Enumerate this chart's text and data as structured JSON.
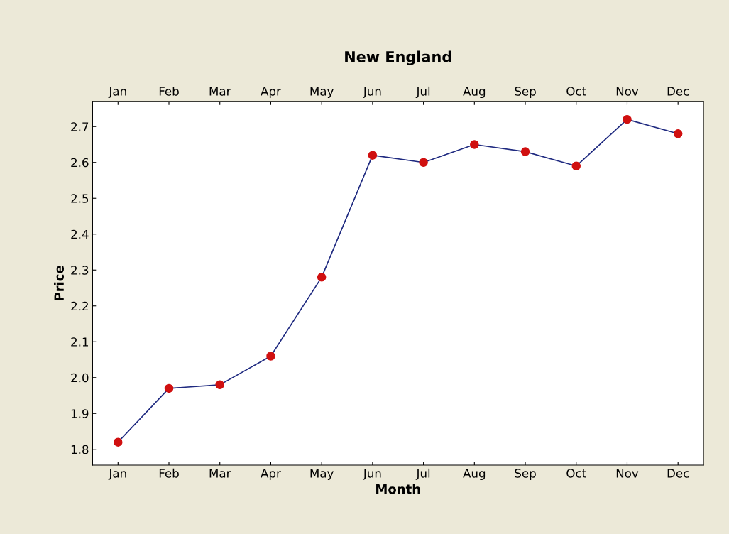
{
  "chart_data": {
    "type": "line",
    "title": "New England",
    "xlabel": "Month",
    "ylabel": "Price",
    "categories": [
      "Jan",
      "Feb",
      "Mar",
      "Apr",
      "May",
      "Jun",
      "Jul",
      "Aug",
      "Sep",
      "Oct",
      "Nov",
      "Dec"
    ],
    "series": [
      {
        "color": "#1f2a80",
        "colors": [
          "#d01010",
          "#d01010",
          "#d01010",
          "#d01010",
          "#d01010",
          "#d01010",
          "#d01010",
          "#d01010",
          "#d01010",
          "#d01010",
          "#d01010",
          "#d01010"
        ],
        "values": [
          1.82,
          1.97,
          1.98,
          2.06,
          2.28,
          2.62,
          2.6,
          2.65,
          2.63,
          2.59,
          2.72,
          2.68
        ]
      }
    ],
    "ylim": [
      1.756,
      2.77
    ],
    "yticks": [
      1.8,
      1.9,
      {
        "value": 2.0,
        "label": "2.0"
      },
      2.1,
      2.2,
      2.3,
      2.4,
      2.5,
      2.6,
      2.7
    ],
    "marker": "circle",
    "line_style": "solid",
    "grid": false,
    "legend": false
  }
}
